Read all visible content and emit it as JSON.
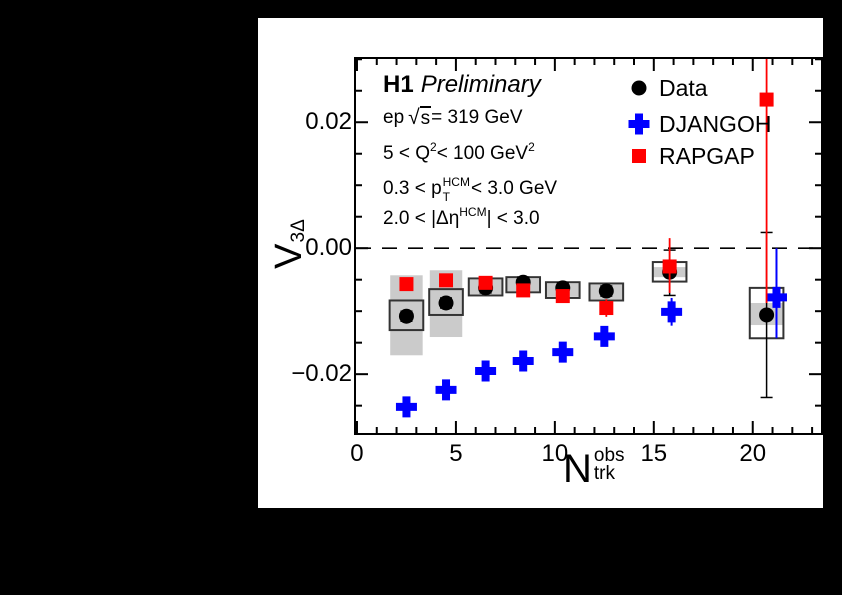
{
  "page": {
    "background": "#000000",
    "canvas_background": "#ffffff"
  },
  "header": {
    "brand": "H1",
    "brand_suffix": "Preliminary",
    "line1": {
      "a": "ep",
      "sqrt": "√",
      "s": "s",
      "b": " = 319 GeV"
    },
    "line2": {
      "a": "5 < Q",
      "sup1": "2",
      "b": " < 100 GeV",
      "sup2": "2"
    },
    "line3": {
      "a": "0.3 < p",
      "sup": "HCM",
      "sub": "T",
      "b": " < 3.0 GeV"
    },
    "line4": {
      "a": "2.0 < |Δη",
      "sup": "HCM",
      "b": "| < 3.0"
    }
  },
  "axes": {
    "x": {
      "base": "N",
      "sup": "obs",
      "sub": "trk"
    },
    "y": {
      "base": "V",
      "sub": "3Δ"
    }
  },
  "chart_data": {
    "type": "scatter",
    "title": "H1 Preliminary",
    "conditions": [
      "ep √s = 319 GeV",
      "5 < Q^2 < 100 GeV^2",
      "0.3 < p_T^HCM < 3.0 GeV",
      "2.0 < |Δη^HCM| < 3.0"
    ],
    "xlabel": "N_trk^obs",
    "ylabel": "V_3Δ",
    "xlim": [
      -0.1,
      23.5
    ],
    "ylim": [
      -0.0295,
      0.0302
    ],
    "xticks": {
      "major": [
        0,
        5,
        10,
        15,
        20
      ],
      "minor_step": 1
    },
    "yticks": {
      "major": [
        0.02,
        0.0,
        -0.02
      ],
      "major_labels": [
        "0.02",
        "0.00",
        "−0.02"
      ],
      "minor_step": 0.005
    },
    "zero_line": true,
    "grid": false,
    "legend_position": "top-right-inside",
    "colors": {
      "data": "#000000",
      "djangoh": "#0000ff",
      "rapgap": "#ff0000",
      "syst_band": "#cbcbcb",
      "syst_box_edge": "#333333"
    },
    "box_halfwidth_units": 0.85,
    "band_halfwidth_units": 0.82,
    "series": [
      {
        "name": "Data",
        "marker": "circle",
        "color": "#000000",
        "x": [
          2.5,
          4.5,
          6.5,
          8.4,
          10.4,
          12.6,
          15.8,
          20.7
        ],
        "y": [
          -0.0108,
          -0.0087,
          -0.0063,
          -0.0054,
          -0.0063,
          -0.0068,
          -0.0038,
          -0.0106
        ],
        "yerr_lo": [
          0.0008,
          0.0008,
          0.0008,
          0.0008,
          0.0008,
          0.0008,
          0.0037,
          0.0131
        ],
        "yerr_hi": [
          0.0008,
          0.0008,
          0.0008,
          0.0008,
          0.0008,
          0.0008,
          0.0035,
          0.0131
        ],
        "syst_box": [
          [
            -0.013,
            -0.0083
          ],
          [
            -0.0106,
            -0.0065
          ],
          [
            -0.0075,
            -0.0048
          ],
          [
            -0.007,
            -0.0046
          ],
          [
            -0.0079,
            -0.0054
          ],
          [
            -0.0083,
            -0.0056
          ],
          [
            -0.0053,
            -0.0022
          ],
          [
            -0.0143,
            -0.0063
          ]
        ],
        "syst_band": [
          [
            -0.017,
            -0.0043
          ],
          [
            -0.0141,
            -0.0035
          ],
          [
            -0.0073,
            -0.005
          ],
          [
            -0.0068,
            -0.0048
          ],
          [
            -0.0077,
            -0.0056
          ],
          [
            -0.0081,
            -0.0058
          ],
          [
            -0.0046,
            -0.003
          ],
          [
            -0.0122,
            -0.0087
          ]
        ]
      },
      {
        "name": "DJANGOH",
        "marker": "cross",
        "color": "#0000ff",
        "x": [
          2.5,
          4.5,
          6.5,
          8.4,
          10.4,
          12.5,
          15.9,
          21.2
        ],
        "y": [
          -0.0252,
          -0.0225,
          -0.0195,
          -0.0179,
          -0.0165,
          -0.014,
          -0.0101,
          -0.0078
        ],
        "yerr_lo": [
          0.0006,
          0.0006,
          0.0006,
          0.0006,
          0.0006,
          0.0006,
          0.0022,
          0.0065
        ],
        "yerr_hi": [
          0.0006,
          0.0006,
          0.0006,
          0.0006,
          0.0006,
          0.0006,
          0.0022,
          0.0078
        ]
      },
      {
        "name": "RAPGAP",
        "marker": "square",
        "color": "#ff0000",
        "x": [
          2.5,
          4.5,
          6.5,
          8.4,
          10.4,
          12.6,
          15.8,
          20.7
        ],
        "y": [
          -0.0057,
          -0.0051,
          -0.0055,
          -0.0067,
          -0.0076,
          -0.0095,
          -0.0029,
          0.0236
        ],
        "yerr_lo": [
          0.0006,
          0.0006,
          0.0006,
          0.0006,
          0.0006,
          0.0014,
          0.0042,
          0.0323
        ],
        "yerr_hi": [
          0.0006,
          0.0006,
          0.0006,
          0.0006,
          0.0006,
          0.0014,
          0.0045,
          0.0323
        ]
      }
    ]
  }
}
